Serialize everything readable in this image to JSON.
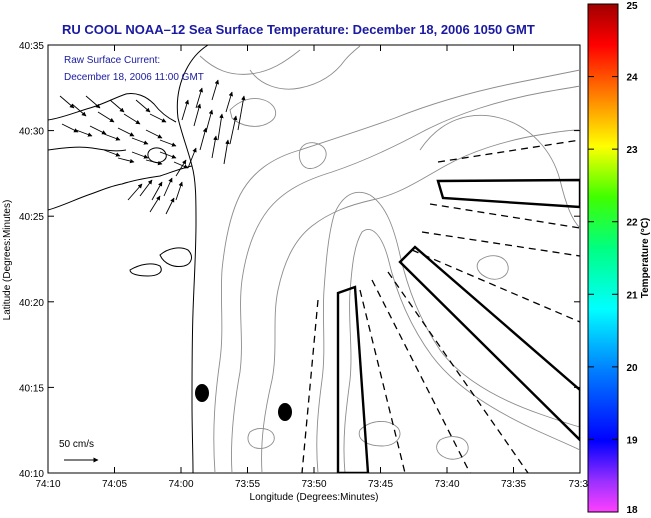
{
  "header": {
    "title": "RU COOL  NOAA–12  Sea Surface Temperature:  December 18, 2006 1050 GMT"
  },
  "overlay": {
    "current_label": "Raw Surface Current:",
    "current_time": "December 18, 2006 11:00 GMT",
    "scale_label": "50 cm/s"
  },
  "axes": {
    "xlabel": "Longitude (Degrees:Minutes)",
    "ylabel": "Latitude (Degrees:Minutes)",
    "x_ticks": [
      "74:10",
      "74:05",
      "74:00",
      "73:55",
      "73:50",
      "73:45",
      "73:40",
      "73:35",
      "73:3"
    ],
    "y_ticks": [
      "40:35",
      "40:30",
      "40:25",
      "40:20",
      "40:15",
      "40:10"
    ]
  },
  "colorbar": {
    "label": "Temperature (°C)",
    "ticks": [
      "25",
      "24",
      "23",
      "22",
      "21",
      "20",
      "19",
      "18"
    ],
    "range": [
      18,
      25
    ]
  },
  "colors": {
    "title": "#1a1aa0",
    "ink": "#000000",
    "contour": "#8c8c8c"
  }
}
